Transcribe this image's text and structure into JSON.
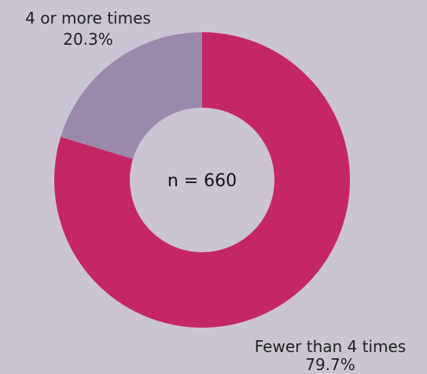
{
  "chart_data": {
    "type": "pie",
    "donut": true,
    "slices": [
      {
        "label": "Fewer than 4 times",
        "value_label": "79.7%",
        "value": 79.7,
        "color": "#c42763"
      },
      {
        "label": "4 or more times",
        "value_label": "20.3%",
        "value": 20.3,
        "color": "#9a89a9"
      }
    ],
    "center_text": "n = 660",
    "background": "#cbc5d3",
    "hole_color": "#cbc5d3"
  }
}
